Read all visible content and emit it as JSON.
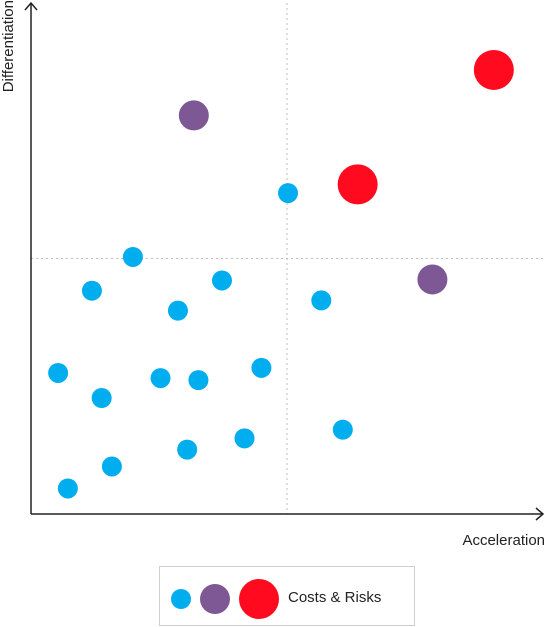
{
  "chart_data": {
    "type": "scatter",
    "xlabel": "Acceleration",
    "ylabel": "Differentiation",
    "xlim": [
      0,
      100
    ],
    "ylim": [
      0,
      100
    ],
    "dividers": {
      "x": 50,
      "y": 50
    },
    "grid": false,
    "legend": {
      "placement": "bottom-center",
      "label": "Costs & Risks"
    },
    "colors": {
      "small": "#00AEEF",
      "medium": "#7E5895",
      "large": "#FF0A1F",
      "axis": "#222222",
      "divider": "#bbbbbb"
    },
    "series": [
      {
        "size": "small",
        "points": [
          {
            "x": 50.2,
            "y": 62.8
          },
          {
            "x": 19.9,
            "y": 50.3
          },
          {
            "x": 11.9,
            "y": 43.7
          },
          {
            "x": 37.3,
            "y": 45.7
          },
          {
            "x": 28.7,
            "y": 39.8
          },
          {
            "x": 56.7,
            "y": 41.8
          },
          {
            "x": 5.3,
            "y": 27.6
          },
          {
            "x": 25.3,
            "y": 26.6
          },
          {
            "x": 32.7,
            "y": 26.2
          },
          {
            "x": 45.0,
            "y": 28.6
          },
          {
            "x": 13.8,
            "y": 22.7
          },
          {
            "x": 60.9,
            "y": 16.5
          },
          {
            "x": 41.7,
            "y": 14.8
          },
          {
            "x": 30.5,
            "y": 12.6
          },
          {
            "x": 15.8,
            "y": 9.3
          },
          {
            "x": 7.2,
            "y": 5.0
          }
        ]
      },
      {
        "size": "medium",
        "points": [
          {
            "x": 31.8,
            "y": 78.0
          },
          {
            "x": 78.4,
            "y": 45.9
          }
        ]
      },
      {
        "size": "large",
        "points": [
          {
            "x": 90.4,
            "y": 86.9
          },
          {
            "x": 63.8,
            "y": 64.5
          }
        ]
      }
    ]
  }
}
